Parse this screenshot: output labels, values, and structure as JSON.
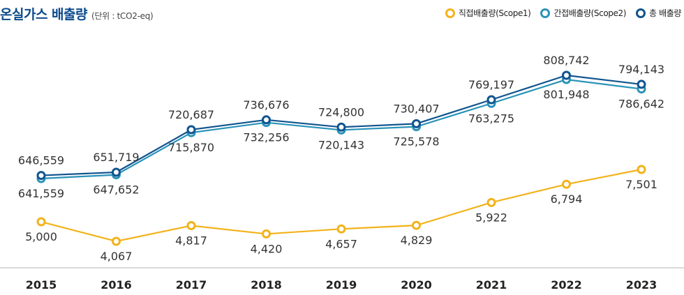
{
  "header": {
    "title": "온실가스 배출량",
    "unit": "(단위 : tCO2-eq)"
  },
  "chart_data": {
    "type": "line",
    "title": "온실가스 배출량",
    "unit": "(단위 : tCO2-eq)",
    "categories": [
      "2015",
      "2016",
      "2017",
      "2018",
      "2019",
      "2020",
      "2021",
      "2022",
      "2023"
    ],
    "series": [
      {
        "name": "직접배출량(Scope1)",
        "color": "#f2b31a",
        "values": [
          5000,
          4067,
          4817,
          4420,
          4657,
          4829,
          5922,
          6794,
          7501
        ],
        "labels": [
          "5,000",
          "4,067",
          "4,817",
          "4,420",
          "4,657",
          "4,829",
          "5,922",
          "6,794",
          "7,501"
        ]
      },
      {
        "name": "간접배출량(Scope2)",
        "color": "#2a93b8",
        "values": [
          641559,
          647652,
          715870,
          732256,
          720143,
          725578,
          763275,
          801948,
          786642
        ],
        "labels": [
          "641,559",
          "647,652",
          "715,870",
          "732,256",
          "720,143",
          "725,578",
          "763,275",
          "801,948",
          "786,642"
        ]
      },
      {
        "name": "총 배출량",
        "color": "#10548f",
        "values": [
          646559,
          651719,
          720687,
          736676,
          724800,
          730407,
          769197,
          808742,
          794143
        ],
        "labels": [
          "646,559",
          "651,719",
          "720,687",
          "736,676",
          "724,800",
          "730,407",
          "769,197",
          "808,742",
          "794,143"
        ]
      }
    ],
    "grid": false,
    "legend": "top-right"
  }
}
